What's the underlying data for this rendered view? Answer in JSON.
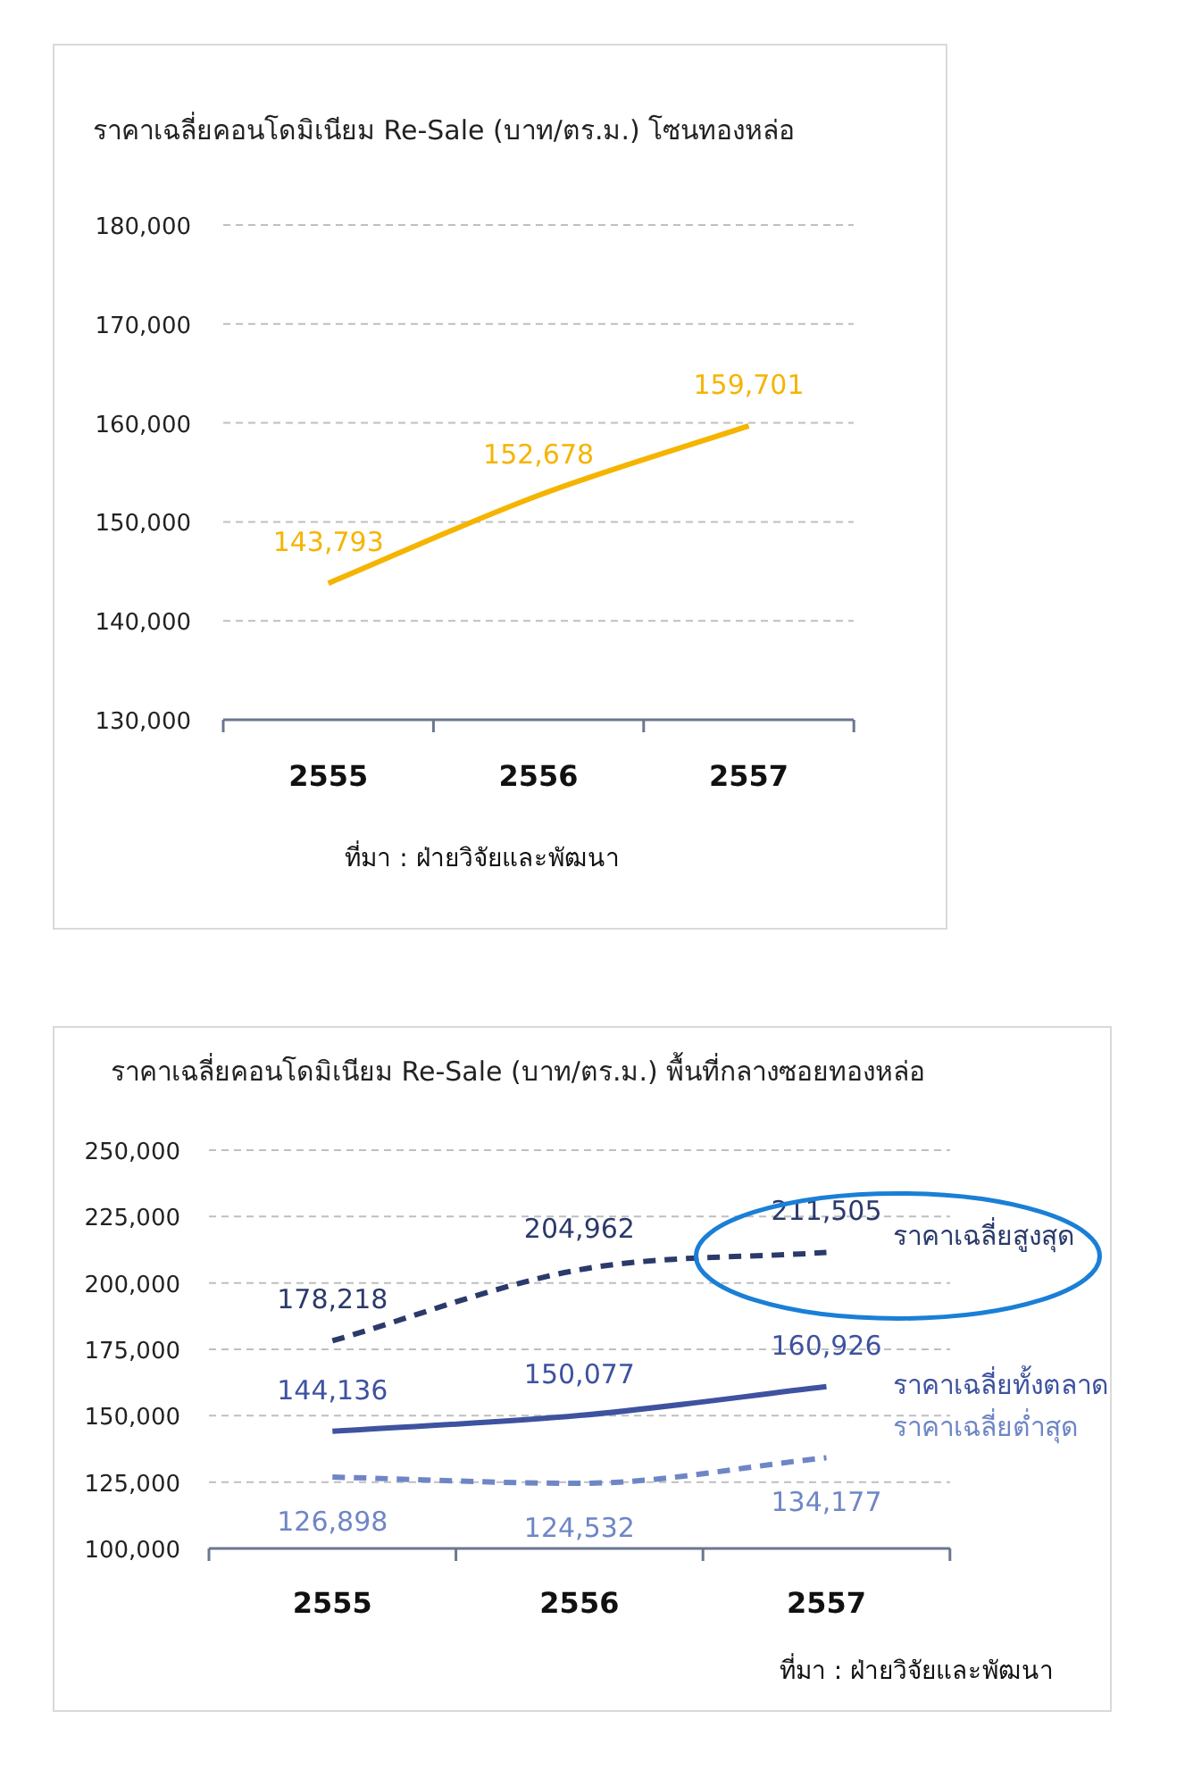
{
  "chart_data": [
    {
      "type": "line",
      "title": "ราคาเฉลี่ยคอนโดมิเนียม Re-Sale (บาท/ตร.ม.) โซนทองหล่อ",
      "categories": [
        "2555",
        "2556",
        "2557"
      ],
      "series": [
        {
          "color": "#f5b400",
          "values": [
            143793,
            152678,
            159701
          ],
          "value_labels": [
            "143,793",
            "152,678",
            "159,701"
          ]
        }
      ],
      "ylim": [
        130000,
        180000
      ],
      "yticks": [
        {
          "value": 130000,
          "label": "130,000"
        },
        {
          "value": 140000,
          "label": "140,000"
        },
        {
          "value": 150000,
          "label": "150,000"
        },
        {
          "value": 160000,
          "label": "160,000"
        },
        {
          "value": 170000,
          "label": "170,000"
        },
        {
          "value": 180000,
          "label": "180,000"
        }
      ],
      "grid": "y",
      "line_style": "solid",
      "annotations": [
        "ที่มา : ฝ่ายวิจัยและพัฒนา"
      ]
    },
    {
      "type": "line",
      "title": "ราคาเฉลี่ยคอนโดมิเนียม Re-Sale (บาท/ตร.ม.) พื้นที่กลางซอยทองหล่อ",
      "categories": [
        "2555",
        "2556",
        "2557"
      ],
      "series": [
        {
          "name": "ราคาเฉลี่ยสูงสุด",
          "color": "#2b3a6b",
          "line_style": "dashed",
          "values": [
            178218,
            204962,
            211505
          ],
          "value_labels": [
            "178,218",
            "204,962",
            "211,505"
          ]
        },
        {
          "name": "ราคาเฉลี่ยทั้งตลาด",
          "color": "#3e52a0",
          "line_style": "solid",
          "values": [
            144136,
            150077,
            160926
          ],
          "value_labels": [
            "144,136",
            "150,077",
            "160,926"
          ]
        },
        {
          "name": "ราคาเฉลี่ยต่ำสุด",
          "color": "#6f86c6",
          "line_style": "dashed",
          "values": [
            126898,
            124532,
            134177
          ],
          "value_labels": [
            "126,898",
            "124,532",
            "134,177"
          ]
        }
      ],
      "ylim": [
        100000,
        250000
      ],
      "yticks": [
        {
          "value": 100000,
          "label": "100,000"
        },
        {
          "value": 125000,
          "label": "125,000"
        },
        {
          "value": 150000,
          "label": "150,000"
        },
        {
          "value": 175000,
          "label": "175,000"
        },
        {
          "value": 200000,
          "label": "200,000"
        },
        {
          "value": 225000,
          "label": "225,000"
        },
        {
          "value": 250000,
          "label": "250,000"
        }
      ],
      "grid": "y",
      "annotations": [
        "ที่มา : ฝ่ายวิจัยและพัฒนา"
      ]
    }
  ]
}
